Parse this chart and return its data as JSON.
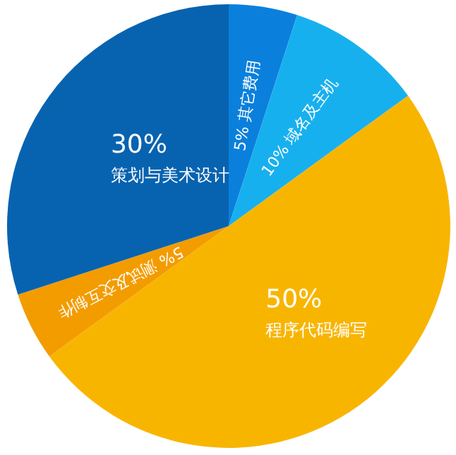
{
  "chart_data": {
    "type": "pie",
    "categories": [
      "其它费用",
      "域名及主机",
      "程序代码编写",
      "测试及交互制作",
      "策划与美术设计"
    ],
    "values": [
      5,
      10,
      50,
      5,
      30
    ],
    "colors": [
      "#0a80dc",
      "#17b0ee",
      "#f8b500",
      "#f39c00",
      "#0763b0"
    ],
    "value_labels": [
      "5%",
      "10%",
      "50%",
      "5%",
      "30%"
    ]
  }
}
